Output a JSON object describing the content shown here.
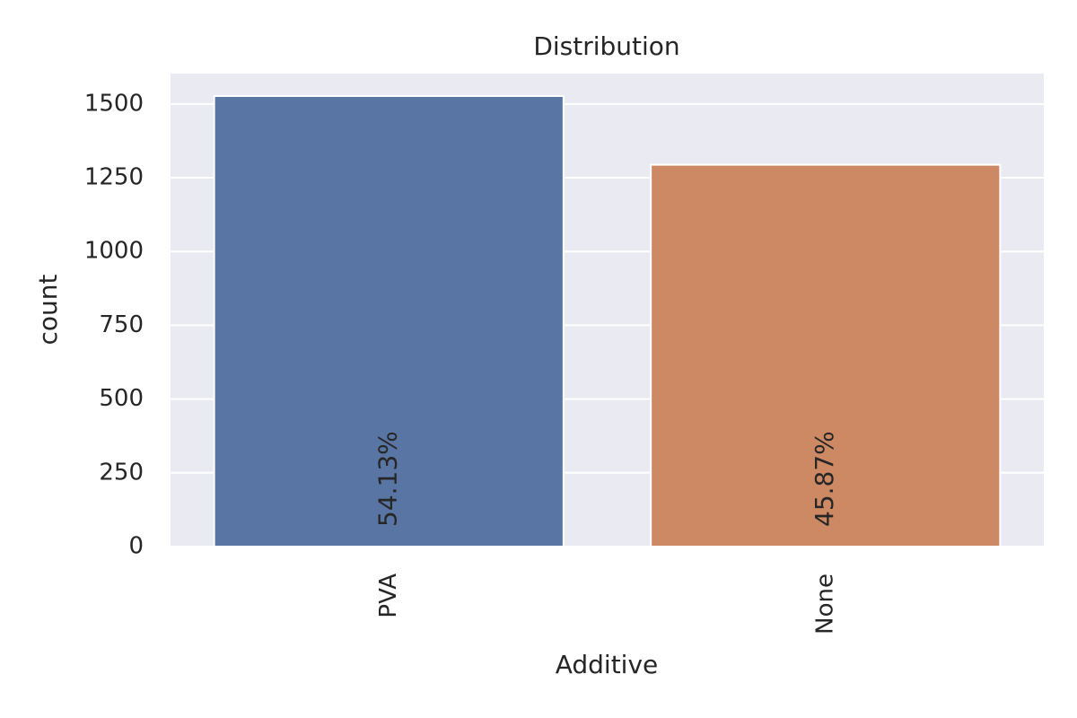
{
  "chart_data": {
    "type": "bar",
    "title": "Distribution",
    "x_label": "Additive",
    "y_label": "count",
    "categories": [
      "PVA",
      "None"
    ],
    "values": [
      1527,
      1294
    ],
    "colors": [
      "#5975a4",
      "#cc8963"
    ],
    "annotations": [
      "54.13%",
      "45.87%"
    ],
    "ylim": [
      0,
      1603
    ],
    "yticks": [
      0,
      250,
      500,
      750,
      1000,
      1250,
      1500
    ],
    "grid": true
  }
}
